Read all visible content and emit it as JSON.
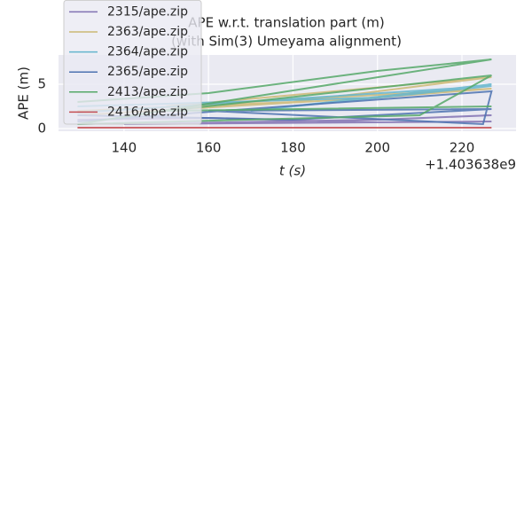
{
  "chart_data": {
    "type": "line",
    "title": [
      "APE w.r.t. translation part (m)",
      "(with Sim(3) Umeyama alignment)"
    ],
    "xlabel": "t (s)",
    "ylabel": "APE (m)",
    "x_offset_label": "+1.403638e9",
    "xlim": [
      124.5,
      232.8
    ],
    "ylim": [
      -0.3,
      8.3
    ],
    "xticks": [
      140,
      160,
      180,
      200,
      220
    ],
    "yticks": [
      0,
      5
    ],
    "grid": true,
    "legend": "upper left",
    "series": [
      {
        "name": "2315/ape.zip",
        "color": "#8172b3",
        "x": [
          129,
          160,
          190,
          227,
          200,
          140,
          227
        ],
        "values": [
          1.0,
          1.2,
          0.8,
          1.5,
          1.0,
          0.5,
          0.8
        ]
      },
      {
        "name": "2363/ape.zip",
        "color": "#ccb974",
        "x": [
          129,
          180,
          227,
          150,
          227,
          200,
          129
        ],
        "values": [
          2.0,
          3.0,
          5.8,
          2.5,
          4.5,
          3.5,
          1.5
        ]
      },
      {
        "name": "2364/ape.zip",
        "color": "#64b5cd",
        "x": [
          129,
          200,
          227,
          170,
          227,
          129
        ],
        "values": [
          2.5,
          3.5,
          5.0,
          2.0,
          4.8,
          1.8
        ]
      },
      {
        "name": "2365/ape.zip",
        "color": "#4c72b0",
        "x": [
          129,
          180,
          227,
          160,
          225,
          227,
          129
        ],
        "values": [
          1.5,
          1.0,
          2.2,
          2.0,
          0.5,
          4.2,
          0.8
        ]
      },
      {
        "name": "2413/ape.zip",
        "color": "#55a868",
        "x": [
          129,
          160,
          200,
          227,
          129,
          210,
          227,
          150,
          227
        ],
        "values": [
          3.0,
          4.0,
          6.5,
          7.8,
          0.5,
          1.5,
          6.0,
          2.0,
          2.5
        ]
      },
      {
        "name": "2416/ape.zip",
        "color": "#c44e52",
        "x": [
          129,
          227
        ],
        "values": [
          0.1,
          0.1
        ]
      }
    ]
  }
}
